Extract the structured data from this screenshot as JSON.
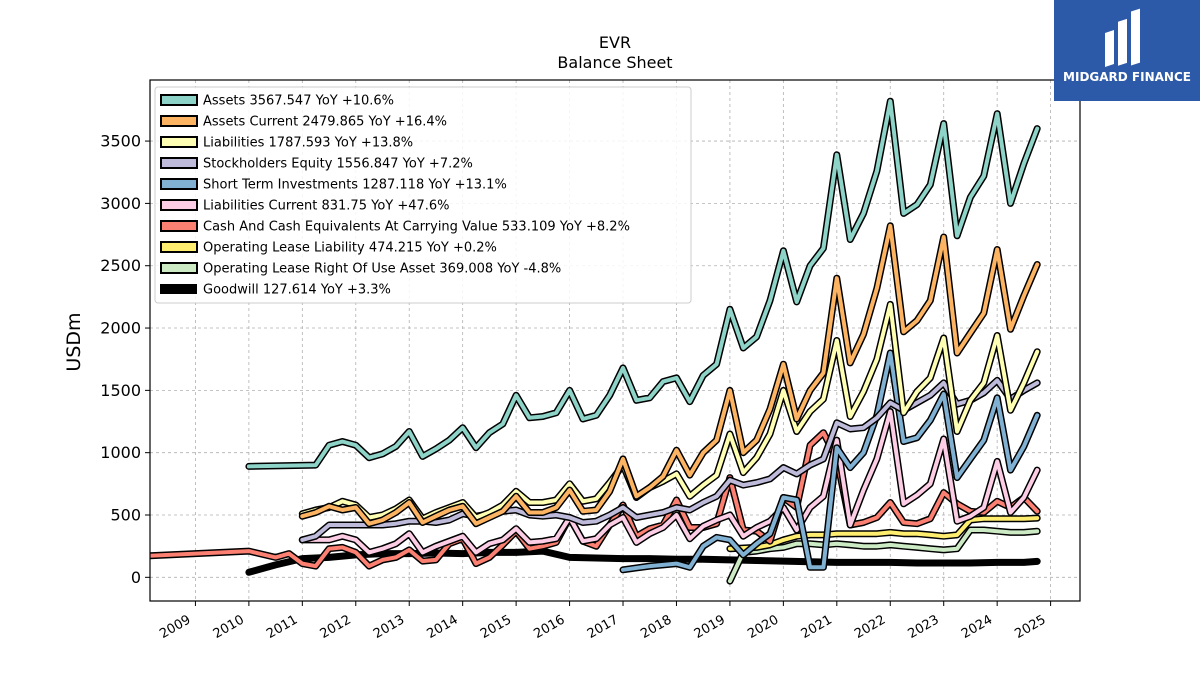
{
  "logo": {
    "text": "MIDGARD FINANCE",
    "bg": "#2d5aa8"
  },
  "chart_data": {
    "type": "line",
    "title": "EVR",
    "subtitle": "Balance  Sheet",
    "ylabel": "USDm",
    "xlim": [
      2008.15,
      2025.55
    ],
    "ylim": [
      -190,
      3990
    ],
    "yticks": [
      0,
      500,
      1000,
      1500,
      2000,
      2500,
      3000,
      3500
    ],
    "xticks": [
      2009,
      2010,
      2011,
      2012,
      2013,
      2014,
      2015,
      2016,
      2017,
      2018,
      2019,
      2020,
      2021,
      2022,
      2023,
      2024,
      2025
    ],
    "grid": true,
    "legend_position": "top-left",
    "series": [
      {
        "name": "Assets  3567.547 YoY +10.6%",
        "color": "#8dd3c7",
        "width": 4,
        "x": [
          2010.0,
          2011.25,
          2011.5,
          2011.75,
          2012.0,
          2012.25,
          2012.5,
          2012.75,
          2013.0,
          2013.25,
          2013.5,
          2013.75,
          2014.0,
          2014.25,
          2014.5,
          2014.75,
          2015.0,
          2015.25,
          2015.5,
          2015.75,
          2016.0,
          2016.25,
          2016.5,
          2016.75,
          2017.0,
          2017.25,
          2017.5,
          2017.75,
          2018.0,
          2018.25,
          2018.5,
          2018.75,
          2019.0,
          2019.25,
          2019.5,
          2019.75,
          2020.0,
          2020.25,
          2020.5,
          2020.75,
          2021.0,
          2021.25,
          2021.5,
          2021.75,
          2022.0,
          2022.25,
          2022.5,
          2022.75,
          2023.0,
          2023.25,
          2023.5,
          2023.75,
          2024.0,
          2024.25,
          2024.5,
          2024.75
        ],
        "y": [
          890,
          900,
          1060,
          1090,
          1060,
          960,
          990,
          1050,
          1170,
          970,
          1030,
          1100,
          1200,
          1040,
          1160,
          1230,
          1460,
          1280,
          1290,
          1320,
          1500,
          1270,
          1300,
          1460,
          1680,
          1420,
          1440,
          1570,
          1600,
          1410,
          1620,
          1710,
          2150,
          1840,
          1930,
          2220,
          2620,
          2210,
          2500,
          2640,
          3390,
          2710,
          2920,
          3260,
          3820,
          2920,
          2990,
          3150,
          3640,
          2740,
          3050,
          3220,
          3720,
          3000,
          3320,
          3600
        ]
      },
      {
        "name": "Assets Current  2479.865 YoY +16.4%",
        "color": "#fdb462",
        "width": 4,
        "x": [
          2011.0,
          2011.25,
          2011.5,
          2011.75,
          2012.0,
          2012.25,
          2012.5,
          2012.75,
          2013.0,
          2013.25,
          2013.5,
          2013.75,
          2014.0,
          2014.25,
          2014.5,
          2014.75,
          2015.0,
          2015.25,
          2015.5,
          2015.75,
          2016.0,
          2016.25,
          2016.5,
          2016.75,
          2017.0,
          2017.25,
          2017.5,
          2017.75,
          2018.0,
          2018.25,
          2018.5,
          2018.75,
          2019.0,
          2019.25,
          2019.5,
          2019.75,
          2020.0,
          2020.25,
          2020.5,
          2020.75,
          2021.0,
          2021.25,
          2021.5,
          2021.75,
          2022.0,
          2022.25,
          2022.5,
          2022.75,
          2023.0,
          2023.25,
          2023.5,
          2023.75,
          2024.0,
          2024.25,
          2024.5,
          2024.75
        ],
        "y": [
          490,
          520,
          570,
          540,
          560,
          430,
          460,
          520,
          600,
          440,
          490,
          540,
          570,
          430,
          480,
          530,
          650,
          520,
          520,
          560,
          700,
          530,
          540,
          690,
          950,
          650,
          720,
          810,
          1020,
          820,
          1000,
          1100,
          1500,
          1000,
          1100,
          1350,
          1710,
          1270,
          1500,
          1640,
          2400,
          1720,
          1950,
          2320,
          2820,
          1970,
          2060,
          2220,
          2730,
          1800,
          1960,
          2120,
          2630,
          1990,
          2260,
          2510
        ]
      },
      {
        "name": "Liabilities  1787.593 YoY +13.8%",
        "color": "#ffffb3",
        "width": 4,
        "x": [
          2011.0,
          2011.25,
          2011.5,
          2011.75,
          2012.0,
          2012.25,
          2012.5,
          2012.75,
          2013.0,
          2013.25,
          2013.5,
          2013.75,
          2014.0,
          2014.25,
          2014.5,
          2014.75,
          2015.0,
          2015.25,
          2015.5,
          2015.75,
          2016.0,
          2016.25,
          2016.5,
          2016.75,
          2017.0,
          2017.25,
          2017.5,
          2017.75,
          2018.0,
          2018.25,
          2018.5,
          2018.75,
          2019.0,
          2019.25,
          2019.5,
          2019.75,
          2020.0,
          2020.25,
          2020.5,
          2020.75,
          2021.0,
          2021.25,
          2021.5,
          2021.75,
          2022.0,
          2022.25,
          2022.5,
          2022.75,
          2023.0,
          2023.25,
          2023.5,
          2023.75,
          2024.0,
          2024.25,
          2024.5,
          2024.75
        ],
        "y": [
          510,
          540,
          560,
          610,
          580,
          480,
          500,
          550,
          620,
          470,
          520,
          560,
          600,
          480,
          520,
          580,
          690,
          600,
          600,
          620,
          750,
          610,
          630,
          760,
          900,
          640,
          720,
          770,
          830,
          650,
          740,
          820,
          1150,
          840,
          960,
          1150,
          1500,
          1170,
          1330,
          1430,
          1900,
          1290,
          1490,
          1750,
          2190,
          1320,
          1490,
          1600,
          1920,
          1170,
          1420,
          1560,
          1940,
          1340,
          1560,
          1810
        ]
      },
      {
        "name": "Stockholders Equity  1556.847 YoY +7.2%",
        "color": "#bebada",
        "width": 4,
        "x": [
          2011.0,
          2011.25,
          2011.5,
          2011.75,
          2012.0,
          2012.25,
          2012.5,
          2012.75,
          2013.0,
          2013.25,
          2013.5,
          2013.75,
          2014.0,
          2014.25,
          2014.5,
          2014.75,
          2015.0,
          2015.25,
          2015.5,
          2015.75,
          2016.0,
          2016.25,
          2016.5,
          2016.75,
          2017.0,
          2017.25,
          2017.5,
          2017.75,
          2018.0,
          2018.25,
          2018.5,
          2018.75,
          2019.0,
          2019.25,
          2019.5,
          2019.75,
          2020.0,
          2020.25,
          2020.5,
          2020.75,
          2021.0,
          2021.25,
          2021.5,
          2021.75,
          2022.0,
          2022.25,
          2022.5,
          2022.75,
          2023.0,
          2023.25,
          2023.5,
          2023.75,
          2024.0,
          2024.25,
          2024.5,
          2024.75
        ],
        "y": [
          300,
          330,
          420,
          420,
          420,
          420,
          420,
          430,
          450,
          450,
          440,
          460,
          510,
          490,
          510,
          530,
          540,
          500,
          490,
          500,
          480,
          440,
          450,
          500,
          560,
          480,
          500,
          520,
          560,
          540,
          600,
          650,
          780,
          740,
          760,
          790,
          880,
          830,
          900,
          950,
          1240,
          1190,
          1200,
          1280,
          1400,
          1340,
          1400,
          1460,
          1560,
          1390,
          1420,
          1480,
          1580,
          1430,
          1500,
          1560
        ]
      },
      {
        "name": "Short Term Investments  1287.118 YoY +13.1%",
        "color": "#80b1d3",
        "width": 4,
        "x": [
          2017.0,
          2017.5,
          2018.0,
          2018.25,
          2018.5,
          2018.75,
          2019.0,
          2019.25,
          2019.5,
          2019.75,
          2020.0,
          2020.25,
          2020.5,
          2020.75,
          2021.0,
          2021.25,
          2021.5,
          2021.75,
          2022.0,
          2022.25,
          2022.5,
          2022.75,
          2023.0,
          2023.25,
          2023.5,
          2023.75,
          2024.0,
          2024.25,
          2024.5,
          2024.75
        ],
        "y": [
          60,
          90,
          110,
          80,
          250,
          320,
          300,
          180,
          270,
          350,
          640,
          620,
          80,
          80,
          1040,
          880,
          1000,
          1300,
          1800,
          1090,
          1120,
          1260,
          1470,
          800,
          950,
          1100,
          1440,
          860,
          1050,
          1300
        ]
      },
      {
        "name": "Liabilities Current  831.75 YoY +47.6%",
        "color": "#fccde5",
        "width": 4,
        "x": [
          2011.0,
          2011.25,
          2011.5,
          2011.75,
          2012.0,
          2012.25,
          2012.5,
          2012.75,
          2013.0,
          2013.25,
          2013.5,
          2013.75,
          2014.0,
          2014.25,
          2014.5,
          2014.75,
          2015.0,
          2015.25,
          2015.5,
          2015.75,
          2016.0,
          2016.25,
          2016.5,
          2016.75,
          2017.0,
          2017.25,
          2017.5,
          2017.75,
          2018.0,
          2018.25,
          2018.5,
          2018.75,
          2019.0,
          2019.25,
          2019.5,
          2019.75,
          2020.0,
          2020.25,
          2020.5,
          2020.75,
          2021.0,
          2021.25,
          2021.5,
          2021.75,
          2022.0,
          2022.25,
          2022.5,
          2022.75,
          2023.0,
          2023.25,
          2023.5,
          2023.75,
          2024.0,
          2024.25,
          2024.5,
          2024.75
        ],
        "y": [
          300,
          300,
          300,
          330,
          300,
          200,
          230,
          270,
          350,
          200,
          250,
          290,
          330,
          200,
          270,
          300,
          390,
          280,
          290,
          310,
          480,
          290,
          310,
          420,
          480,
          280,
          350,
          400,
          500,
          310,
          410,
          460,
          500,
          330,
          400,
          450,
          560,
          380,
          560,
          650,
          1100,
          420,
          700,
          950,
          1330,
          590,
          660,
          750,
          1110,
          450,
          490,
          560,
          930,
          520,
          640,
          860
        ]
      },
      {
        "name": "Cash And Cash Equivalents At Carrying Value  533.109 YoY +8.2%",
        "color": "#fb8072",
        "width": 4,
        "x": [
          2008.0,
          2010.0,
          2010.5,
          2010.75,
          2011.0,
          2011.25,
          2011.5,
          2011.75,
          2012.0,
          2012.25,
          2012.5,
          2012.75,
          2013.0,
          2013.25,
          2013.5,
          2013.75,
          2014.0,
          2014.25,
          2014.5,
          2014.75,
          2015.0,
          2015.25,
          2015.5,
          2015.75,
          2016.0,
          2016.25,
          2016.5,
          2016.75,
          2017.0,
          2017.25,
          2017.5,
          2017.75,
          2018.0,
          2018.25,
          2018.5,
          2018.75,
          2019.0,
          2019.25,
          2019.5,
          2019.75,
          2020.0,
          2020.25,
          2020.5,
          2020.75,
          2021.0,
          2021.25,
          2021.5,
          2021.75,
          2022.0,
          2022.25,
          2022.5,
          2022.75,
          2023.0,
          2023.25,
          2023.5,
          2023.75,
          2024.0,
          2024.25,
          2024.5,
          2024.75
        ],
        "y": [
          170,
          210,
          160,
          190,
          110,
          90,
          230,
          240,
          200,
          90,
          140,
          160,
          220,
          130,
          140,
          270,
          310,
          110,
          160,
          260,
          370,
          230,
          250,
          280,
          480,
          290,
          250,
          420,
          580,
          330,
          390,
          420,
          620,
          400,
          400,
          430,
          800,
          380,
          370,
          290,
          640,
          560,
          1060,
          1160,
          950,
          420,
          440,
          480,
          600,
          440,
          430,
          470,
          680,
          590,
          530,
          520,
          610,
          560,
          640,
          530
        ]
      },
      {
        "name": "Operating Lease Liability  474.215 YoY +0.2%",
        "color": "#ffed6f",
        "width": 4,
        "x": [
          2019.0,
          2019.5,
          2019.75,
          2020.0,
          2020.25,
          2020.5,
          2020.75,
          2021.0,
          2021.25,
          2021.5,
          2021.75,
          2022.0,
          2022.25,
          2022.5,
          2022.75,
          2023.0,
          2023.25,
          2023.5,
          2023.75,
          2024.0,
          2024.25,
          2024.5,
          2024.75
        ],
        "y": [
          230,
          240,
          260,
          300,
          330,
          340,
          340,
          350,
          350,
          350,
          350,
          360,
          350,
          350,
          340,
          330,
          340,
          460,
          470,
          470,
          470,
          470,
          475
        ]
      },
      {
        "name": "Operating Lease Right Of Use Asset  369.008 YoY -4.8%",
        "color": "#ccebc5",
        "width": 4,
        "x": [
          2019.0,
          2019.25,
          2019.5,
          2019.75,
          2020.0,
          2020.25,
          2020.5,
          2020.75,
          2021.0,
          2021.25,
          2021.5,
          2021.75,
          2022.0,
          2022.25,
          2022.5,
          2022.75,
          2023.0,
          2023.25,
          2023.5,
          2023.75,
          2024.0,
          2024.25,
          2024.5,
          2024.75
        ],
        "y": [
          -30,
          200,
          210,
          230,
          240,
          270,
          270,
          260,
          270,
          260,
          250,
          250,
          260,
          250,
          240,
          230,
          220,
          230,
          380,
          380,
          370,
          360,
          360,
          369
        ]
      },
      {
        "name": "Goodwill  127.614 YoY +3.3%",
        "color": "#000000",
        "width": 7,
        "x": [
          2010.0,
          2010.5,
          2011.0,
          2011.5,
          2012.0,
          2012.5,
          2013.0,
          2013.5,
          2014.0,
          2014.5,
          2015.0,
          2015.5,
          2016.0,
          2016.5,
          2017.0,
          2017.5,
          2018.0,
          2018.5,
          2019.0,
          2019.5,
          2020.0,
          2020.5,
          2021.0,
          2021.5,
          2022.0,
          2022.5,
          2023.0,
          2023.5,
          2024.0,
          2024.5,
          2024.75
        ],
        "y": [
          40,
          100,
          150,
          160,
          180,
          190,
          190,
          195,
          190,
          200,
          200,
          210,
          160,
          155,
          150,
          150,
          145,
          145,
          140,
          135,
          130,
          125,
          120,
          120,
          120,
          115,
          115,
          115,
          120,
          120,
          128
        ]
      }
    ]
  }
}
